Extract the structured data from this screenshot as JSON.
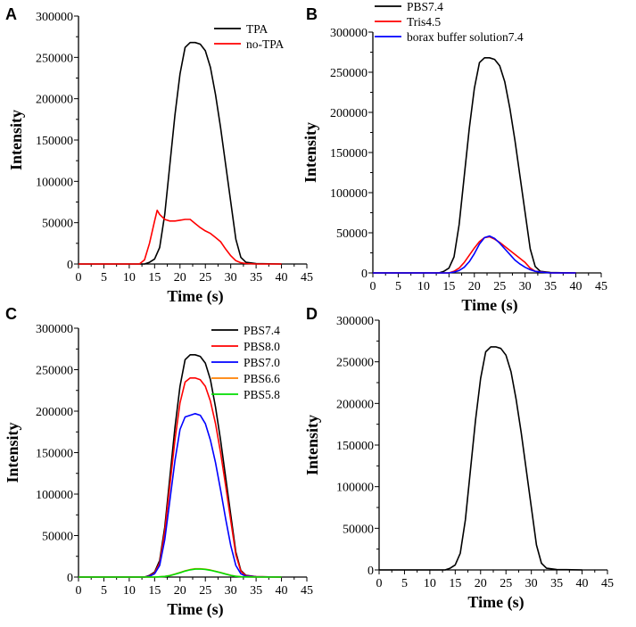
{
  "chart_data": [
    {
      "panel": "A",
      "type": "line",
      "title": "",
      "xlabel": "Time (s)",
      "ylabel": "Intensity",
      "xlim": [
        0,
        45
      ],
      "ylim": [
        0,
        300000
      ],
      "xticks": [
        0,
        5,
        10,
        15,
        20,
        25,
        30,
        35,
        40,
        45
      ],
      "yticks": [
        0,
        50000,
        100000,
        150000,
        200000,
        250000,
        300000
      ],
      "legend_position": "top-right",
      "series": [
        {
          "name": "TPA",
          "color": "#000000",
          "x": [
            0,
            5,
            10,
            13,
            14,
            15,
            16,
            17,
            18,
            19,
            20,
            21,
            22,
            23,
            24,
            25,
            26,
            27,
            28,
            29,
            30,
            31,
            32,
            33,
            35,
            40
          ],
          "y": [
            0,
            0,
            0,
            0,
            2000,
            6000,
            20000,
            60000,
            120000,
            180000,
            230000,
            262000,
            268000,
            268000,
            266000,
            258000,
            238000,
            205000,
            165000,
            120000,
            75000,
            30000,
            8000,
            2000,
            500,
            0
          ]
        },
        {
          "name": "no-TPA",
          "color": "#ff0000",
          "x": [
            0,
            5,
            10,
            12,
            13,
            14,
            15,
            15.5,
            16,
            17,
            18,
            19,
            20,
            21,
            22,
            23,
            24,
            25,
            26,
            27,
            28,
            29,
            30,
            31,
            32,
            33,
            35,
            40
          ],
          "y": [
            0,
            0,
            0,
            0,
            5000,
            25000,
            52000,
            65000,
            60000,
            54000,
            52000,
            52000,
            53000,
            54000,
            54000,
            49000,
            44000,
            40000,
            37000,
            32000,
            27000,
            18000,
            10000,
            4000,
            1500,
            500,
            0,
            0
          ]
        }
      ]
    },
    {
      "panel": "B",
      "type": "line",
      "title": "",
      "xlabel": "Time (s)",
      "ylabel": "Intensity",
      "xlim": [
        0,
        45
      ],
      "ylim": [
        0,
        300000
      ],
      "xticks": [
        0,
        5,
        10,
        15,
        20,
        25,
        30,
        35,
        40,
        45
      ],
      "yticks": [
        0,
        50000,
        100000,
        150000,
        200000,
        250000,
        300000
      ],
      "legend_position": "top-right",
      "series": [
        {
          "name": "PBS7.4",
          "color": "#000000",
          "x": [
            0,
            5,
            10,
            13,
            14,
            15,
            16,
            17,
            18,
            19,
            20,
            21,
            22,
            23,
            24,
            25,
            26,
            27,
            28,
            29,
            30,
            31,
            32,
            33,
            35,
            40
          ],
          "y": [
            0,
            0,
            0,
            0,
            2000,
            6000,
            20000,
            60000,
            120000,
            180000,
            230000,
            262000,
            268000,
            268000,
            266000,
            258000,
            238000,
            205000,
            165000,
            120000,
            75000,
            30000,
            8000,
            2000,
            500,
            0
          ]
        },
        {
          "name": "Tris4.5",
          "color": "#ff0000",
          "x": [
            0,
            10,
            15,
            16,
            17,
            18,
            19,
            20,
            21,
            22,
            23,
            24,
            25,
            26,
            27,
            28,
            29,
            30,
            31,
            32,
            35,
            40
          ],
          "y": [
            0,
            0,
            0,
            2000,
            6000,
            13000,
            22000,
            31000,
            39000,
            44000,
            45000,
            42000,
            38000,
            33000,
            28000,
            23000,
            18000,
            13000,
            6000,
            2000,
            0,
            0
          ]
        },
        {
          "name": "borax buffer solution7.4",
          "color": "#0000ff",
          "x": [
            0,
            10,
            15,
            16,
            17,
            18,
            19,
            20,
            21,
            22,
            23,
            24,
            25,
            26,
            27,
            28,
            29,
            30,
            31,
            32,
            33,
            35,
            40
          ],
          "y": [
            0,
            0,
            0,
            1000,
            3000,
            7000,
            14000,
            24000,
            36000,
            44000,
            46000,
            43000,
            37000,
            30000,
            23000,
            16000,
            11000,
            7000,
            4000,
            2000,
            1000,
            0,
            0
          ]
        }
      ]
    },
    {
      "panel": "C",
      "type": "line",
      "title": "",
      "xlabel": "Time (s)",
      "ylabel": "Intensity",
      "xlim": [
        0,
        45
      ],
      "ylim": [
        0,
        300000
      ],
      "xticks": [
        0,
        5,
        10,
        15,
        20,
        25,
        30,
        35,
        40,
        45
      ],
      "yticks": [
        0,
        50000,
        100000,
        150000,
        200000,
        250000,
        300000
      ],
      "legend_position": "top-right",
      "series": [
        {
          "name": "PBS7.4",
          "color": "#000000",
          "x": [
            0,
            5,
            10,
            13,
            14,
            15,
            16,
            17,
            18,
            19,
            20,
            21,
            22,
            23,
            24,
            25,
            26,
            27,
            28,
            29,
            30,
            31,
            32,
            33,
            35,
            40
          ],
          "y": [
            0,
            0,
            0,
            0,
            2000,
            6000,
            20000,
            60000,
            120000,
            180000,
            230000,
            262000,
            268000,
            268000,
            266000,
            258000,
            238000,
            205000,
            165000,
            120000,
            75000,
            30000,
            8000,
            2000,
            500,
            0
          ]
        },
        {
          "name": "PBS8.0",
          "color": "#ff0000",
          "x": [
            0,
            5,
            10,
            13,
            14,
            15,
            16,
            17,
            18,
            19,
            20,
            21,
            22,
            23,
            24,
            25,
            26,
            27,
            28,
            29,
            30,
            31,
            32,
            33,
            35,
            40
          ],
          "y": [
            0,
            0,
            0,
            0,
            1500,
            5000,
            17000,
            55000,
            110000,
            165000,
            210000,
            235000,
            240000,
            240000,
            238000,
            230000,
            212000,
            185000,
            150000,
            110000,
            68000,
            27000,
            7000,
            1500,
            500,
            0
          ]
        },
        {
          "name": "PBS7.0",
          "color": "#0000ff",
          "x": [
            0,
            5,
            10,
            13,
            14,
            15,
            16,
            17,
            18,
            19,
            20,
            21,
            22,
            23,
            24,
            25,
            26,
            27,
            28,
            29,
            30,
            31,
            32,
            33,
            35,
            40
          ],
          "y": [
            0,
            0,
            0,
            0,
            1000,
            4000,
            14000,
            45000,
            92000,
            140000,
            178000,
            193000,
            195000,
            197000,
            195000,
            185000,
            165000,
            138000,
            105000,
            70000,
            38000,
            14000,
            4000,
            1000,
            300,
            0
          ]
        },
        {
          "name": "PBS6.6",
          "color": "#ff8000",
          "x": [
            0,
            10,
            15,
            16,
            17,
            18,
            19,
            20,
            21,
            22,
            23,
            24,
            25,
            26,
            27,
            28,
            29,
            30,
            31,
            32,
            35,
            40
          ],
          "y": [
            0,
            0,
            0,
            300,
            800,
            1800,
            3500,
            5500,
            7500,
            9000,
            10000,
            10000,
            9500,
            8500,
            7000,
            5500,
            3800,
            2200,
            1000,
            400,
            0,
            0
          ]
        },
        {
          "name": "PBS5.8",
          "color": "#00dd00",
          "x": [
            0,
            10,
            15,
            16,
            17,
            18,
            19,
            20,
            21,
            22,
            23,
            24,
            25,
            26,
            27,
            28,
            29,
            30,
            31,
            32,
            35,
            40
          ],
          "y": [
            0,
            0,
            0,
            300,
            800,
            1700,
            3300,
            5200,
            7200,
            8700,
            9600,
            9700,
            9200,
            8200,
            6800,
            5300,
            3600,
            2000,
            900,
            300,
            0,
            0
          ]
        }
      ]
    },
    {
      "panel": "D",
      "type": "line",
      "title": "",
      "xlabel": "Time (s)",
      "ylabel": "Intensity",
      "xlim": [
        0,
        45
      ],
      "ylim": [
        0,
        300000
      ],
      "xticks": [
        0,
        5,
        10,
        15,
        20,
        25,
        30,
        35,
        40,
        45
      ],
      "yticks": [
        0,
        50000,
        100000,
        150000,
        200000,
        250000,
        300000
      ],
      "legend_position": "none",
      "series": [
        {
          "name": "",
          "color": "#000000",
          "x": [
            0,
            5,
            10,
            13,
            14,
            15,
            16,
            17,
            18,
            19,
            20,
            21,
            22,
            23,
            24,
            25,
            26,
            27,
            28,
            29,
            30,
            31,
            32,
            33,
            35,
            40
          ],
          "y": [
            0,
            0,
            0,
            0,
            2000,
            6000,
            20000,
            60000,
            120000,
            180000,
            230000,
            262000,
            268000,
            268000,
            266000,
            258000,
            238000,
            205000,
            165000,
            120000,
            75000,
            30000,
            8000,
            2000,
            500,
            0
          ]
        }
      ]
    }
  ]
}
